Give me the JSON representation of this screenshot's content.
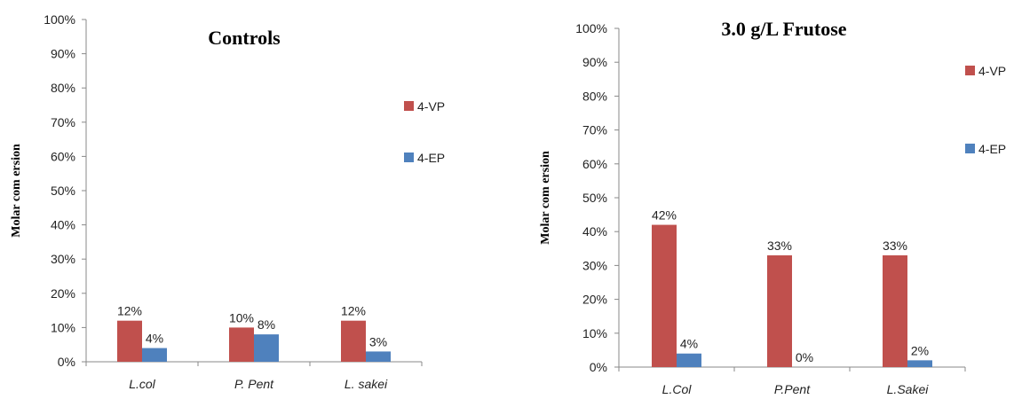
{
  "chart_data": [
    {
      "type": "bar",
      "title": "Controls",
      "ylabel": "Molar com ersion",
      "xlabel": "",
      "categories": [
        "L.col",
        "P. Pent",
        "L. sakei"
      ],
      "yticks": [
        "0%",
        "10%",
        "20%",
        "30%",
        "40%",
        "50%",
        "60%",
        "70%",
        "80%",
        "90%",
        "100%"
      ],
      "ylim": [
        0,
        100
      ],
      "grid": false,
      "legend_position": "right",
      "series": [
        {
          "name": "4-VP",
          "color": "#c0504d",
          "values": [
            12,
            10,
            12
          ],
          "labels": [
            "12%",
            "10%",
            "12%"
          ]
        },
        {
          "name": "4-EP",
          "color": "#4f81bd",
          "values": [
            4,
            8,
            3
          ],
          "labels": [
            "4%",
            "8%",
            "3%"
          ]
        }
      ]
    },
    {
      "type": "bar",
      "title": "3.0 g/L Frutose",
      "ylabel": "Molar com ersion",
      "xlabel": "",
      "categories": [
        "L.Col",
        "P.Pent",
        "L.Sakei"
      ],
      "yticks": [
        "0%",
        "10%",
        "20%",
        "30%",
        "40%",
        "50%",
        "60%",
        "70%",
        "80%",
        "90%",
        "100%"
      ],
      "ylim": [
        0,
        100
      ],
      "grid": false,
      "legend_position": "right",
      "series": [
        {
          "name": "4-VP",
          "color": "#c0504d",
          "values": [
            42,
            33,
            33
          ],
          "labels": [
            "42%",
            "33%",
            "33%"
          ]
        },
        {
          "name": "4-EP",
          "color": "#4f81bd",
          "values": [
            4,
            0,
            2
          ],
          "labels": [
            "4%",
            "0%",
            "2%"
          ]
        }
      ]
    }
  ]
}
